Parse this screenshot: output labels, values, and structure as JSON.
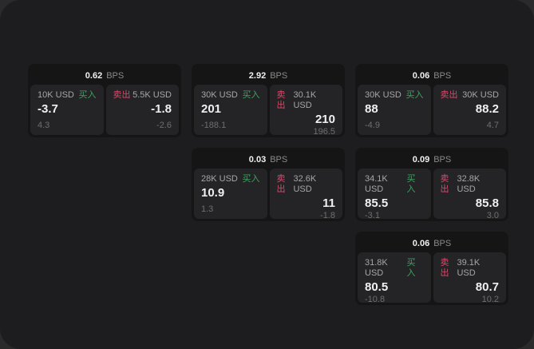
{
  "theme": {
    "backdrop": "#2a2a2a",
    "window_bg": "#1d1d1f",
    "card_bg": "#151515",
    "panel_bg": "#242427",
    "buy_color": "#3da35f",
    "sell_color": "#d9486a",
    "value_color": "#f0f0f0",
    "label_color": "#a6a6a6",
    "muted_color": "#6e6e6e",
    "bps_label_color": "#8a8a8a"
  },
  "labels": {
    "bps": "BPS",
    "buy": "买入",
    "sell": "卖出"
  },
  "columns": [
    {
      "cards": [
        {
          "bps": "0.62",
          "buy": {
            "size": "10K USD",
            "value": "-3.7",
            "delta": "4.3"
          },
          "sell": {
            "size": "5.5K USD",
            "value": "-1.8",
            "delta": "-2.6"
          }
        }
      ]
    },
    {
      "cards": [
        {
          "bps": "2.92",
          "buy": {
            "size": "30K USD",
            "value": "201",
            "delta": "-188.1"
          },
          "sell": {
            "size": "30.1K USD",
            "value": "210",
            "delta": "196.5"
          }
        },
        {
          "bps": "0.03",
          "buy": {
            "size": "28K USD",
            "value": "10.9",
            "delta": "1.3"
          },
          "sell": {
            "size": "32.6K USD",
            "value": "11",
            "delta": "-1.8"
          }
        }
      ]
    },
    {
      "cards": [
        {
          "bps": "0.06",
          "buy": {
            "size": "30K USD",
            "value": "88",
            "delta": "-4.9"
          },
          "sell": {
            "size": "30K USD",
            "value": "88.2",
            "delta": "4.7"
          }
        },
        {
          "bps": "0.09",
          "buy": {
            "size": "34.1K USD",
            "value": "85.5",
            "delta": "-3.1"
          },
          "sell": {
            "size": "32.8K USD",
            "value": "85.8",
            "delta": "3.0"
          }
        },
        {
          "bps": "0.06",
          "buy": {
            "size": "31.8K USD",
            "value": "80.5",
            "delta": "-10.8"
          },
          "sell": {
            "size": "39.1K USD",
            "value": "80.7",
            "delta": "10.2"
          }
        }
      ]
    }
  ]
}
